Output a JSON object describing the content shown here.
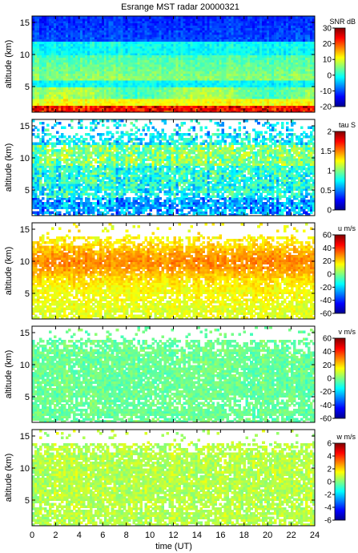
{
  "chart_data": {
    "type": "heatmap",
    "title": "Esrange MST radar 20000321",
    "xlabel": "time (UT)",
    "x_ticks": [
      "0",
      "2",
      "4",
      "6",
      "8",
      "10",
      "12",
      "14",
      "16",
      "18",
      "20",
      "22",
      "24"
    ],
    "xlim": [
      0,
      24
    ],
    "colormap": "jet",
    "panels": [
      {
        "ylabel": "altitude (km)",
        "ylim": [
          1,
          16
        ],
        "y_ticks": [
          "5",
          "10",
          "15"
        ],
        "colorbar_label": "SNR dB",
        "colorbar_ticks": [
          "-20",
          "-10",
          "0",
          "10",
          "20",
          "30"
        ],
        "clim": [
          -20,
          30
        ],
        "field_description": "SNR high near ground, decreasing with altitude; full coverage"
      },
      {
        "ylabel": "altitude (km)",
        "ylim": [
          1,
          16
        ],
        "y_ticks": [
          "5",
          "10",
          "15"
        ],
        "colorbar_label": "tau S",
        "colorbar_ticks": [
          "0",
          "0.5",
          "1",
          "1.5",
          "2"
        ],
        "clim": [
          0,
          2
        ],
        "field_description": "correlation time mostly 0.5-1.2 s, gaps above ~13 km"
      },
      {
        "ylabel": "altitude (km)",
        "ylim": [
          1,
          16
        ],
        "y_ticks": [
          "5",
          "10",
          "15"
        ],
        "colorbar_label": "u m/s",
        "colorbar_ticks": [
          "-60",
          "-40",
          "-20",
          "0",
          "20",
          "40",
          "60"
        ],
        "clim": [
          -60,
          60
        ],
        "field_description": "zonal wind positive 10-35 m/s, jet near 9-11 km"
      },
      {
        "ylabel": "altitude (km)",
        "ylim": [
          1,
          16
        ],
        "y_ticks": [
          "5",
          "10",
          "15"
        ],
        "colorbar_label": "v m/s",
        "colorbar_ticks": [
          "-60",
          "-40",
          "-20",
          "0",
          "20",
          "40",
          "60"
        ],
        "clim": [
          -60,
          60
        ],
        "field_description": "meridional wind near -5 to 5 m/s"
      },
      {
        "ylabel": "altitude (km)",
        "ylim": [
          1,
          16
        ],
        "y_ticks": [
          "5",
          "10",
          "15"
        ],
        "colorbar_label": "w m/s",
        "colorbar_ticks": [
          "-6",
          "-4",
          "-2",
          "0",
          "2",
          "4",
          "6"
        ],
        "clim": [
          -6,
          6
        ],
        "field_description": "vertical wind near 0 to 2 m/s"
      }
    ]
  }
}
